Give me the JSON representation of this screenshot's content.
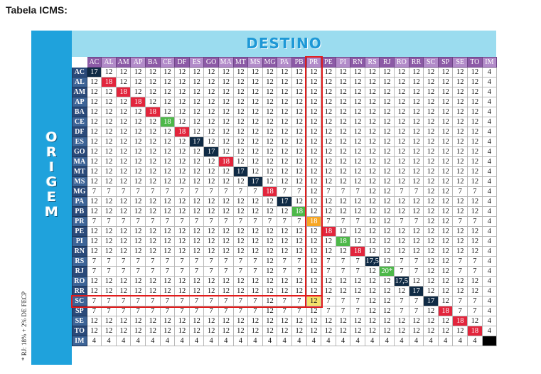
{
  "page_title": "Tabela ICMS:",
  "destino_title": "DESTINO",
  "origem_label": "ORIGEM",
  "footnote": "* RJ: 18% + 2% DE FECP",
  "colors": {
    "origem_bar": "#1fa2dc",
    "destino_band": "#9bdcef",
    "column_header": "#8c5aa6",
    "row_header": "#2a4a7a",
    "red": "#e2253c",
    "dark": "#0f2a44",
    "green": "#4db849",
    "orange": "#f7a623",
    "yellow": "#f3e26b",
    "highlight_border": "#e21c1c"
  },
  "columns": [
    "AC",
    "AL",
    "AM",
    "AP",
    "BA",
    "CE",
    "DF",
    "ES",
    "GO",
    "MA",
    "MT",
    "MS",
    "MG",
    "PA",
    "PB",
    "PR",
    "PE",
    "PI",
    "RN",
    "RS",
    "RJ",
    "RO",
    "RR",
    "SC",
    "SP",
    "SE",
    "TO",
    "IM"
  ],
  "rows": [
    {
      "state": "AC",
      "values": [
        "17",
        "12",
        "12",
        "12",
        "12",
        "12",
        "12",
        "12",
        "12",
        "12",
        "12",
        "12",
        "12",
        "12",
        "12",
        "12",
        "12",
        "12",
        "12",
        "12",
        "12",
        "12",
        "12",
        "12",
        "12",
        "12",
        "12",
        "4"
      ]
    },
    {
      "state": "AL",
      "values": [
        "12",
        "18",
        "12",
        "12",
        "12",
        "12",
        "12",
        "12",
        "12",
        "12",
        "12",
        "12",
        "12",
        "12",
        "12",
        "12",
        "12",
        "12",
        "12",
        "12",
        "12",
        "12",
        "12",
        "12",
        "12",
        "12",
        "12",
        "4"
      ]
    },
    {
      "state": "AM",
      "values": [
        "12",
        "12",
        "18",
        "12",
        "12",
        "12",
        "12",
        "12",
        "12",
        "12",
        "12",
        "12",
        "12",
        "12",
        "12",
        "12",
        "12",
        "12",
        "12",
        "12",
        "12",
        "12",
        "12",
        "12",
        "12",
        "12",
        "12",
        "4"
      ]
    },
    {
      "state": "AP",
      "values": [
        "12",
        "12",
        "12",
        "18",
        "12",
        "12",
        "12",
        "12",
        "12",
        "12",
        "12",
        "12",
        "12",
        "12",
        "12",
        "12",
        "12",
        "12",
        "12",
        "12",
        "12",
        "12",
        "12",
        "12",
        "12",
        "12",
        "12",
        "4"
      ]
    },
    {
      "state": "BA",
      "values": [
        "12",
        "12",
        "12",
        "12",
        "18",
        "12",
        "12",
        "12",
        "12",
        "12",
        "12",
        "12",
        "12",
        "12",
        "12",
        "12",
        "12",
        "12",
        "12",
        "12",
        "12",
        "12",
        "12",
        "12",
        "12",
        "12",
        "12",
        "4"
      ]
    },
    {
      "state": "CE",
      "values": [
        "12",
        "12",
        "12",
        "12",
        "12",
        "18",
        "12",
        "12",
        "12",
        "12",
        "12",
        "12",
        "12",
        "12",
        "12",
        "12",
        "12",
        "12",
        "12",
        "12",
        "12",
        "12",
        "12",
        "12",
        "12",
        "12",
        "12",
        "4"
      ]
    },
    {
      "state": "DF",
      "values": [
        "12",
        "12",
        "12",
        "12",
        "12",
        "12",
        "18",
        "12",
        "12",
        "12",
        "12",
        "12",
        "12",
        "12",
        "12",
        "12",
        "12",
        "12",
        "12",
        "12",
        "12",
        "12",
        "12",
        "12",
        "12",
        "12",
        "12",
        "4"
      ]
    },
    {
      "state": "ES",
      "values": [
        "12",
        "12",
        "12",
        "12",
        "12",
        "12",
        "12",
        "17",
        "12",
        "12",
        "12",
        "12",
        "12",
        "12",
        "12",
        "12",
        "12",
        "12",
        "12",
        "12",
        "12",
        "12",
        "12",
        "12",
        "12",
        "12",
        "12",
        "4"
      ]
    },
    {
      "state": "GO",
      "values": [
        "12",
        "12",
        "12",
        "12",
        "12",
        "12",
        "12",
        "12",
        "17",
        "12",
        "12",
        "12",
        "12",
        "12",
        "12",
        "12",
        "12",
        "12",
        "12",
        "12",
        "12",
        "12",
        "12",
        "12",
        "12",
        "12",
        "12",
        "4"
      ]
    },
    {
      "state": "MA",
      "values": [
        "12",
        "12",
        "12",
        "12",
        "12",
        "12",
        "12",
        "12",
        "12",
        "18",
        "12",
        "12",
        "12",
        "12",
        "12",
        "12",
        "12",
        "12",
        "12",
        "12",
        "12",
        "12",
        "12",
        "12",
        "12",
        "12",
        "12",
        "4"
      ]
    },
    {
      "state": "MT",
      "values": [
        "12",
        "12",
        "12",
        "12",
        "12",
        "12",
        "12",
        "12",
        "12",
        "12",
        "17",
        "12",
        "12",
        "12",
        "12",
        "12",
        "12",
        "12",
        "12",
        "12",
        "12",
        "12",
        "12",
        "12",
        "12",
        "12",
        "12",
        "4"
      ]
    },
    {
      "state": "MS",
      "values": [
        "12",
        "12",
        "12",
        "12",
        "12",
        "12",
        "12",
        "12",
        "12",
        "12",
        "12",
        "17",
        "12",
        "12",
        "12",
        "12",
        "12",
        "12",
        "12",
        "12",
        "12",
        "12",
        "12",
        "12",
        "12",
        "12",
        "12",
        "4"
      ]
    },
    {
      "state": "MG",
      "values": [
        "7",
        "7",
        "7",
        "7",
        "7",
        "7",
        "7",
        "7",
        "7",
        "7",
        "7",
        "7",
        "18",
        "7",
        "7",
        "12",
        "7",
        "7",
        "7",
        "12",
        "12",
        "7",
        "7",
        "12",
        "12",
        "7",
        "7",
        "4"
      ]
    },
    {
      "state": "PA",
      "values": [
        "12",
        "12",
        "12",
        "12",
        "12",
        "12",
        "12",
        "12",
        "12",
        "12",
        "12",
        "12",
        "12",
        "17",
        "12",
        "12",
        "12",
        "12",
        "12",
        "12",
        "12",
        "12",
        "12",
        "12",
        "12",
        "12",
        "12",
        "4"
      ]
    },
    {
      "state": "PB",
      "values": [
        "12",
        "12",
        "12",
        "12",
        "12",
        "12",
        "12",
        "12",
        "12",
        "12",
        "12",
        "12",
        "12",
        "12",
        "18",
        "12",
        "12",
        "12",
        "12",
        "12",
        "12",
        "12",
        "12",
        "12",
        "12",
        "12",
        "12",
        "4"
      ]
    },
    {
      "state": "PR",
      "values": [
        "7",
        "7",
        "7",
        "7",
        "7",
        "7",
        "7",
        "7",
        "7",
        "7",
        "7",
        "7",
        "7",
        "7",
        "7",
        "18",
        "7",
        "7",
        "7",
        "12",
        "12",
        "7",
        "7",
        "12",
        "12",
        "7",
        "7",
        "4"
      ]
    },
    {
      "state": "PE",
      "values": [
        "12",
        "12",
        "12",
        "12",
        "12",
        "12",
        "12",
        "12",
        "12",
        "12",
        "12",
        "12",
        "12",
        "12",
        "12",
        "12",
        "18",
        "12",
        "12",
        "12",
        "12",
        "12",
        "12",
        "12",
        "12",
        "12",
        "12",
        "4"
      ]
    },
    {
      "state": "PI",
      "values": [
        "12",
        "12",
        "12",
        "12",
        "12",
        "12",
        "12",
        "12",
        "12",
        "12",
        "12",
        "12",
        "12",
        "12",
        "12",
        "12",
        "12",
        "18",
        "12",
        "12",
        "12",
        "12",
        "12",
        "12",
        "12",
        "12",
        "12",
        "4"
      ]
    },
    {
      "state": "RN",
      "values": [
        "12",
        "12",
        "12",
        "12",
        "12",
        "12",
        "12",
        "12",
        "12",
        "12",
        "12",
        "12",
        "12",
        "12",
        "12",
        "12",
        "12",
        "12",
        "18",
        "12",
        "12",
        "12",
        "12",
        "12",
        "12",
        "12",
        "12",
        "4"
      ]
    },
    {
      "state": "RS",
      "values": [
        "7",
        "7",
        "7",
        "7",
        "7",
        "7",
        "7",
        "7",
        "7",
        "7",
        "7",
        "7",
        "12",
        "7",
        "7",
        "12",
        "7",
        "7",
        "7",
        "17,5",
        "12",
        "7",
        "7",
        "12",
        "12",
        "7",
        "7",
        "4"
      ]
    },
    {
      "state": "RJ",
      "values": [
        "7",
        "7",
        "7",
        "7",
        "7",
        "7",
        "7",
        "7",
        "7",
        "7",
        "7",
        "7",
        "12",
        "7",
        "7",
        "12",
        "7",
        "7",
        "7",
        "12",
        "20*",
        "7",
        "7",
        "12",
        "12",
        "7",
        "7",
        "4"
      ]
    },
    {
      "state": "RO",
      "values": [
        "12",
        "12",
        "12",
        "12",
        "12",
        "12",
        "12",
        "12",
        "12",
        "12",
        "12",
        "12",
        "12",
        "12",
        "12",
        "12",
        "12",
        "12",
        "12",
        "12",
        "12",
        "17,5",
        "12",
        "12",
        "12",
        "12",
        "12",
        "4"
      ]
    },
    {
      "state": "RR",
      "values": [
        "12",
        "12",
        "12",
        "12",
        "12",
        "12",
        "12",
        "12",
        "12",
        "12",
        "12",
        "12",
        "12",
        "12",
        "12",
        "12",
        "12",
        "12",
        "12",
        "12",
        "12",
        "12",
        "17",
        "12",
        "12",
        "12",
        "12",
        "4"
      ]
    },
    {
      "state": "SC",
      "values": [
        "7",
        "7",
        "7",
        "7",
        "7",
        "7",
        "7",
        "7",
        "7",
        "7",
        "7",
        "7",
        "12",
        "7",
        "7",
        "12",
        "7",
        "7",
        "7",
        "12",
        "12",
        "7",
        "7",
        "17",
        "12",
        "7",
        "7",
        "4"
      ]
    },
    {
      "state": "SP",
      "values": [
        "7",
        "7",
        "7",
        "7",
        "7",
        "7",
        "7",
        "7",
        "7",
        "7",
        "7",
        "7",
        "12",
        "7",
        "7",
        "12",
        "7",
        "7",
        "7",
        "12",
        "12",
        "7",
        "7",
        "12",
        "18",
        "7",
        "7",
        "4"
      ]
    },
    {
      "state": "SE",
      "values": [
        "12",
        "12",
        "12",
        "12",
        "12",
        "12",
        "12",
        "12",
        "12",
        "12",
        "12",
        "12",
        "12",
        "12",
        "12",
        "12",
        "12",
        "12",
        "12",
        "12",
        "12",
        "12",
        "12",
        "12",
        "12",
        "18",
        "12",
        "4"
      ]
    },
    {
      "state": "TO",
      "values": [
        "12",
        "12",
        "12",
        "12",
        "12",
        "12",
        "12",
        "12",
        "12",
        "12",
        "12",
        "12",
        "12",
        "12",
        "12",
        "12",
        "12",
        "12",
        "12",
        "12",
        "12",
        "12",
        "12",
        "12",
        "12",
        "12",
        "18",
        "4"
      ]
    },
    {
      "state": "IM",
      "values": [
        "4",
        "4",
        "4",
        "4",
        "4",
        "4",
        "4",
        "4",
        "4",
        "4",
        "4",
        "4",
        "4",
        "4",
        "4",
        "4",
        "4",
        "4",
        "4",
        "4",
        "4",
        "4",
        "4",
        "4",
        "4",
        "4",
        "4",
        ""
      ]
    }
  ],
  "cell_styles": {
    "AC.AC": "dark",
    "AL.AL": "red",
    "AM.AM": "red",
    "AP.AP": "red",
    "BA.BA": "red",
    "CE.CE": "green",
    "DF.DF": "red",
    "ES.ES": "dark",
    "GO.GO": "dark",
    "MA.MA": "red",
    "MT.MT": "dark",
    "MS.MS": "dark",
    "MG.MG": "red",
    "PA.PA": "dark",
    "PB.PB": "green",
    "PR.PR": "orange",
    "PE.PE": "red",
    "PI.PI": "green",
    "RN.RN": "red",
    "RS.RS": "dark",
    "RJ.RJ": "green",
    "RO.RO": "dark",
    "RR.RR": "dark",
    "SC.SC": "dark",
    "SP.SP": "red",
    "SE.SE": "red",
    "TO.TO": "red",
    "IM.IM": "black",
    "SC.PR": "yellow"
  },
  "highlights": [
    "PR column",
    "SC row"
  ]
}
